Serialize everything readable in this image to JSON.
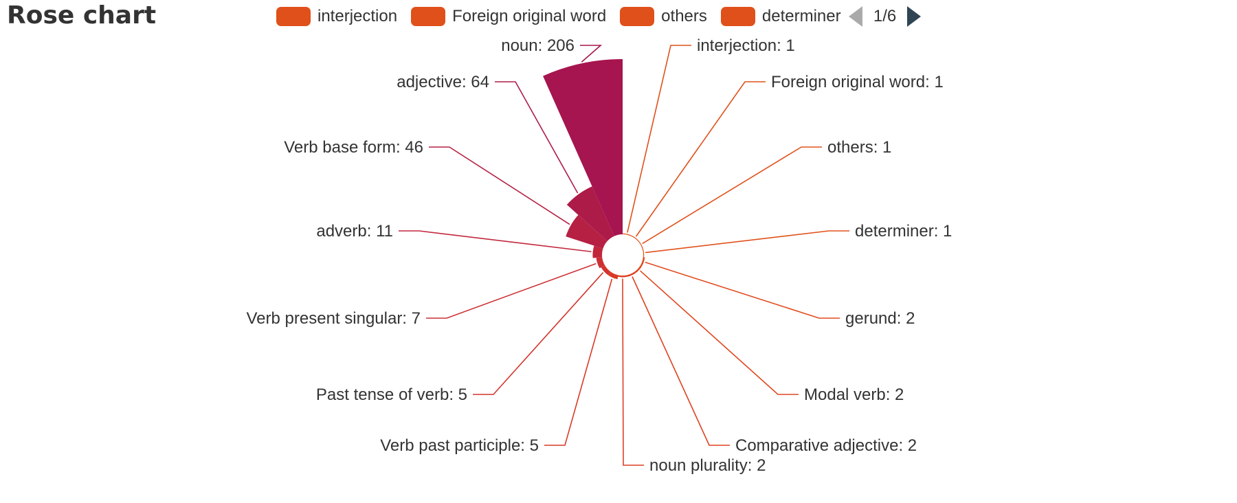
{
  "title": "Rose chart",
  "legend": {
    "items": [
      {
        "label": "interjection",
        "color": "#e0501a"
      },
      {
        "label": "Foreign original word",
        "color": "#e0501a"
      },
      {
        "label": "others",
        "color": "#e0501a"
      },
      {
        "label": "determiner",
        "color": "#e0501a"
      }
    ],
    "page": "1/6"
  },
  "chart_data": {
    "type": "pie",
    "variant": "rose",
    "title": "Rose chart",
    "legend_position": "top",
    "slices": [
      {
        "name": "interjection",
        "value": 1,
        "label": "interjection: 1",
        "color": "#e0501a"
      },
      {
        "name": "Foreign original word",
        "value": 1,
        "label": "Foreign original word: 1",
        "color": "#e0501a"
      },
      {
        "name": "others",
        "value": 1,
        "label": "others: 1",
        "color": "#e0501a"
      },
      {
        "name": "determiner",
        "value": 1,
        "label": "determiner: 1",
        "color": "#e0501a"
      },
      {
        "name": "gerund",
        "value": 2,
        "label": "gerund: 2",
        "color": "#e04a1c"
      },
      {
        "name": "Modal verb",
        "value": 2,
        "label": "Modal verb: 2",
        "color": "#df461d"
      },
      {
        "name": "Comparative adjective",
        "value": 2,
        "label": "Comparative adjective: 2",
        "color": "#de421f"
      },
      {
        "name": "noun plurality",
        "value": 2,
        "label": "noun plurality: 2",
        "color": "#dd3e21"
      },
      {
        "name": "Verb past participle",
        "value": 5,
        "label": "Verb past participle: 5",
        "color": "#d93927"
      },
      {
        "name": "Past tense of verb",
        "value": 5,
        "label": "Past tense of verb: 5",
        "color": "#d3342c"
      },
      {
        "name": "Verb present singular",
        "value": 7,
        "label": "Verb present singular: 7",
        "color": "#cc2f33"
      },
      {
        "name": "adverb",
        "value": 11,
        "label": "adverb: 11",
        "color": "#c1273b"
      },
      {
        "name": "Verb base form",
        "value": 46,
        "label": "Verb base form: 46",
        "color": "#b52043"
      },
      {
        "name": "adjective",
        "value": 64,
        "label": "adjective: 64",
        "color": "#ad1b49"
      },
      {
        "name": "noun",
        "value": 206,
        "label": "noun: 206",
        "color": "#a6154f"
      }
    ]
  }
}
